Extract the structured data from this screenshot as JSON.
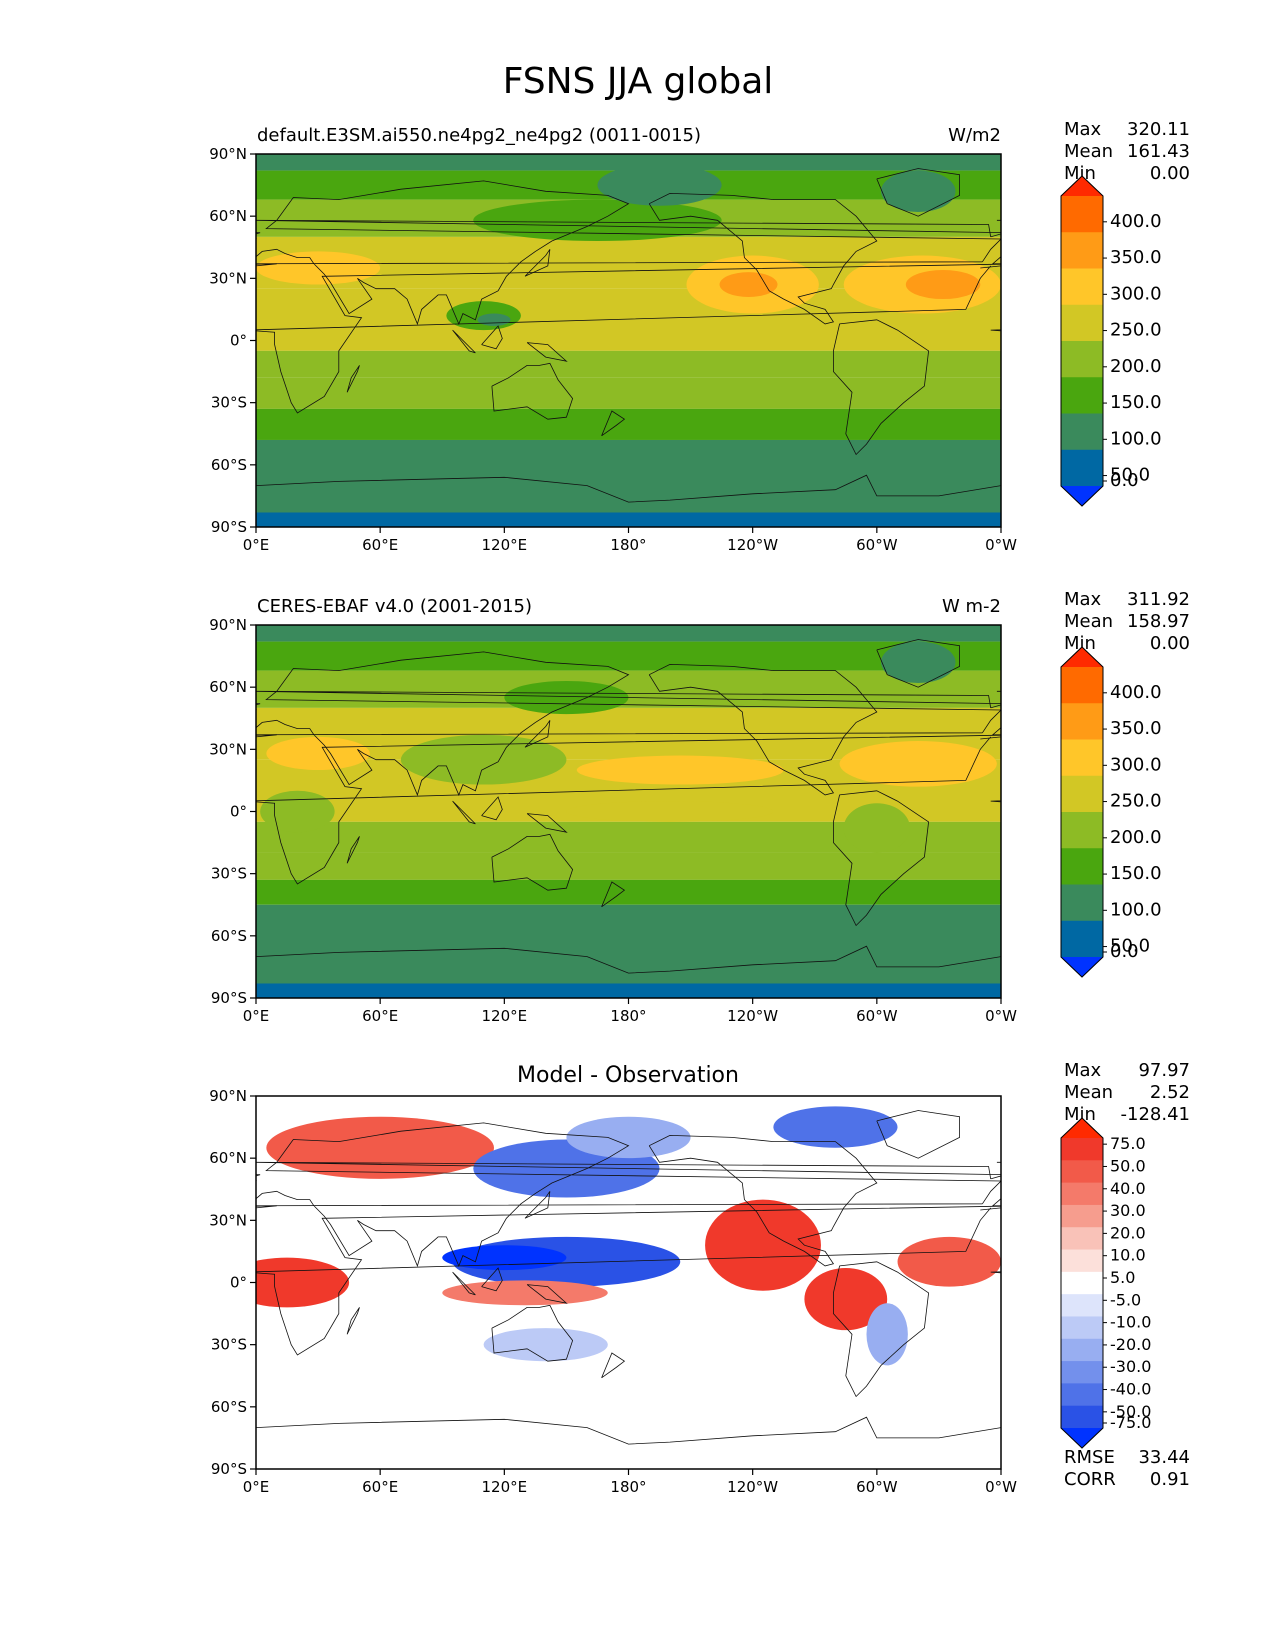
{
  "figure_title": "FSNS JJA global",
  "lat_ticks": [
    "90°N",
    "60°N",
    "30°N",
    "0°",
    "30°S",
    "60°S",
    "90°S"
  ],
  "lon_ticks": [
    "0°E",
    "60°E",
    "120°E",
    "180°",
    "120°W",
    "60°W",
    "0°W"
  ],
  "stat_labels": {
    "max": "Max",
    "mean": "Mean",
    "min": "Min",
    "rmse": "RMSE",
    "corr": "CORR"
  },
  "chart_data": [
    {
      "type": "heatmap",
      "title_left": "default.E3SM.ai550.ne4pg2_ne4pg2 (0011-0015)",
      "title_right": "W/m2",
      "stats": {
        "max": "320.11",
        "mean": "161.43",
        "min": "0.00"
      },
      "colorbar": {
        "labels": [
          "400.0",
          "350.0",
          "300.0",
          "250.0",
          "200.0",
          "150.0",
          "100.0",
          "50.0",
          "0.0"
        ],
        "colors": [
          "#ff2a00",
          "#ff6a00",
          "#ff9b16",
          "#ffc629",
          "#d2c725",
          "#8dbb25",
          "#4aa60f",
          "#3a8a5c",
          "#0068a3",
          "#0033ff"
        ],
        "extend": "both"
      },
      "zonal_bands": [
        {
          "lat": [
            82,
            90
          ],
          "value": 90
        },
        {
          "lat": [
            68,
            82
          ],
          "value": 140
        },
        {
          "lat": [
            50,
            68
          ],
          "value": 175
        },
        {
          "lat": [
            25,
            50
          ],
          "value": 220
        },
        {
          "lat": [
            -5,
            25
          ],
          "value": 210
        },
        {
          "lat": [
            -18,
            -5
          ],
          "value": 190
        },
        {
          "lat": [
            -33,
            -18
          ],
          "value": 160
        },
        {
          "lat": [
            -48,
            -33
          ],
          "value": 110
        },
        {
          "lat": [
            -83,
            -48
          ],
          "value": 70
        },
        {
          "lat": [
            -90,
            -83
          ],
          "value": 20
        }
      ],
      "features": [
        {
          "lon": 240,
          "lat": 27,
          "rx": 32,
          "ry": 14,
          "value": 270
        },
        {
          "lon": 238,
          "lat": 27,
          "rx": 14,
          "ry": 6,
          "value": 310
        },
        {
          "lon": 322,
          "lat": 27,
          "rx": 38,
          "ry": 14,
          "value": 270
        },
        {
          "lon": 332,
          "lat": 27,
          "rx": 18,
          "ry": 7,
          "value": 310
        },
        {
          "lon": 30,
          "lat": 35,
          "rx": 30,
          "ry": 8,
          "value": 265
        },
        {
          "lon": 110,
          "lat": 12,
          "rx": 18,
          "ry": 7,
          "value": 140
        },
        {
          "lon": 115,
          "lat": 10,
          "rx": 8,
          "ry": 3,
          "value": 90
        },
        {
          "lon": 165,
          "lat": 58,
          "rx": 60,
          "ry": 10,
          "value": 140
        },
        {
          "lon": 195,
          "lat": 75,
          "rx": 30,
          "ry": 10,
          "value": 90
        },
        {
          "lon": 320,
          "lat": 72,
          "rx": 18,
          "ry": 10,
          "value": 90
        }
      ]
    },
    {
      "type": "heatmap",
      "title_left": "CERES-EBAF v4.0 (2001-2015)",
      "title_right": "W m-2",
      "stats": {
        "max": "311.92",
        "mean": "158.97",
        "min": "0.00"
      },
      "colorbar": {
        "labels": [
          "400.0",
          "350.0",
          "300.0",
          "250.0",
          "200.0",
          "150.0",
          "100.0",
          "50.0",
          "0.0"
        ],
        "colors": [
          "#ff2a00",
          "#ff6a00",
          "#ff9b16",
          "#ffc629",
          "#d2c725",
          "#8dbb25",
          "#4aa60f",
          "#3a8a5c",
          "#0068a3",
          "#0033ff"
        ],
        "extend": "both"
      },
      "zonal_bands": [
        {
          "lat": [
            82,
            90
          ],
          "value": 90
        },
        {
          "lat": [
            68,
            82
          ],
          "value": 140
        },
        {
          "lat": [
            50,
            68
          ],
          "value": 180
        },
        {
          "lat": [
            25,
            50
          ],
          "value": 215
        },
        {
          "lat": [
            -5,
            25
          ],
          "value": 200
        },
        {
          "lat": [
            -20,
            -5
          ],
          "value": 175
        },
        {
          "lat": [
            -33,
            -20
          ],
          "value": 160
        },
        {
          "lat": [
            -45,
            -33
          ],
          "value": 110
        },
        {
          "lat": [
            -83,
            -45
          ],
          "value": 70
        },
        {
          "lat": [
            -90,
            -83
          ],
          "value": 20
        }
      ],
      "features": [
        {
          "lon": 205,
          "lat": 20,
          "rx": 50,
          "ry": 7,
          "value": 265
        },
        {
          "lon": 320,
          "lat": 23,
          "rx": 38,
          "ry": 11,
          "value": 265
        },
        {
          "lon": 30,
          "lat": 28,
          "rx": 25,
          "ry": 8,
          "value": 260
        },
        {
          "lon": 200,
          "lat": 0,
          "rx": 50,
          "ry": 5,
          "value": 240
        },
        {
          "lon": 110,
          "lat": 25,
          "rx": 40,
          "ry": 12,
          "value": 170
        },
        {
          "lon": 20,
          "lat": 0,
          "rx": 18,
          "ry": 10,
          "value": 170
        },
        {
          "lon": 300,
          "lat": -8,
          "rx": 16,
          "ry": 12,
          "value": 170
        },
        {
          "lon": 150,
          "lat": 55,
          "rx": 30,
          "ry": 8,
          "value": 140
        },
        {
          "lon": 320,
          "lat": 72,
          "rx": 18,
          "ry": 10,
          "value": 90
        }
      ]
    },
    {
      "type": "heatmap",
      "title": "Model - Observation",
      "stats": {
        "max": "97.97",
        "mean": "2.52",
        "min": "-128.41"
      },
      "metrics": {
        "rmse": "33.44",
        "corr": "0.91"
      },
      "colorbar": {
        "labels": [
          "75.0",
          "50.0",
          "40.0",
          "30.0",
          "20.0",
          "10.0",
          "5.0",
          "-5.0",
          "-10.0",
          "-20.0",
          "-30.0",
          "-40.0",
          "-50.0",
          "-75.0"
        ],
        "colors": [
          "#ff2a00",
          "#f0392b",
          "#f25a49",
          "#f47a6a",
          "#f69d8e",
          "#f9c2b8",
          "#fce0da",
          "#ffffff",
          "#dde4fb",
          "#bccaf6",
          "#98aef1",
          "#7390ec",
          "#4f72e8",
          "#2a52e6",
          "#0033ff"
        ],
        "extend": "both"
      },
      "zonal_bands": [
        {
          "lat": [
            -90,
            90
          ],
          "value": 0
        }
      ],
      "features": [
        {
          "lon": 60,
          "lat": 65,
          "rx": 55,
          "ry": 15,
          "value": 45
        },
        {
          "lon": 150,
          "lat": 55,
          "rx": 45,
          "ry": 14,
          "value": -45
        },
        {
          "lon": 180,
          "lat": 70,
          "rx": 30,
          "ry": 10,
          "value": -25
        },
        {
          "lon": 280,
          "lat": 75,
          "rx": 30,
          "ry": 10,
          "value": -45
        },
        {
          "lon": 150,
          "lat": 10,
          "rx": 55,
          "ry": 12,
          "value": -60
        },
        {
          "lon": 120,
          "lat": 12,
          "rx": 30,
          "ry": 6,
          "value": -90
        },
        {
          "lon": 245,
          "lat": 18,
          "rx": 28,
          "ry": 22,
          "value": 55
        },
        {
          "lon": 285,
          "lat": -8,
          "rx": 20,
          "ry": 15,
          "value": 55
        },
        {
          "lon": 335,
          "lat": 10,
          "rx": 25,
          "ry": 12,
          "value": 45
        },
        {
          "lon": 15,
          "lat": 0,
          "rx": 30,
          "ry": 12,
          "value": 55
        },
        {
          "lon": 130,
          "lat": -5,
          "rx": 40,
          "ry": 6,
          "value": 30
        },
        {
          "lon": 305,
          "lat": -25,
          "rx": 10,
          "ry": 15,
          "value": -25
        },
        {
          "lon": 140,
          "lat": -30,
          "rx": 30,
          "ry": 8,
          "value": -20
        }
      ]
    }
  ]
}
